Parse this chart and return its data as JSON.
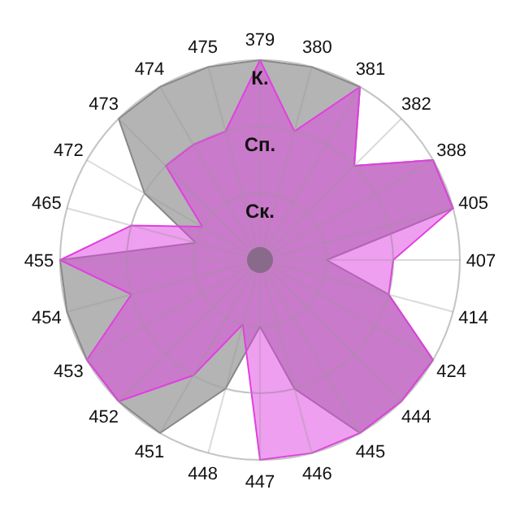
{
  "chart_data": {
    "type": "radar",
    "categories": [
      "379",
      "380",
      "381",
      "382",
      "388",
      "405",
      "407",
      "414",
      "424",
      "444",
      "445",
      "446",
      "447",
      "448",
      "451",
      "452",
      "453",
      "454",
      "455",
      "465",
      "472",
      "473",
      "474",
      "475"
    ],
    "ylim": [
      0,
      3
    ],
    "yticks": [
      {
        "value": 1,
        "label": "Ск."
      },
      {
        "value": 2,
        "label": "Сп."
      },
      {
        "value": 3,
        "label": "К."
      }
    ],
    "grid": true,
    "series": [
      {
        "color": "#b4b4b4",
        "values": [
          3,
          3,
          3,
          2,
          3,
          3,
          1,
          2,
          3,
          3,
          3,
          2,
          1,
          2,
          3,
          3,
          3,
          3,
          3,
          1,
          2,
          3,
          3,
          3
        ]
      },
      {
        "color": "#e040e0",
        "values": [
          3,
          2,
          3,
          2,
          3,
          3,
          2,
          2,
          3,
          3,
          3,
          3,
          3,
          1,
          2,
          3,
          3,
          2,
          3,
          2,
          1,
          2,
          2,
          2
        ]
      }
    ]
  }
}
